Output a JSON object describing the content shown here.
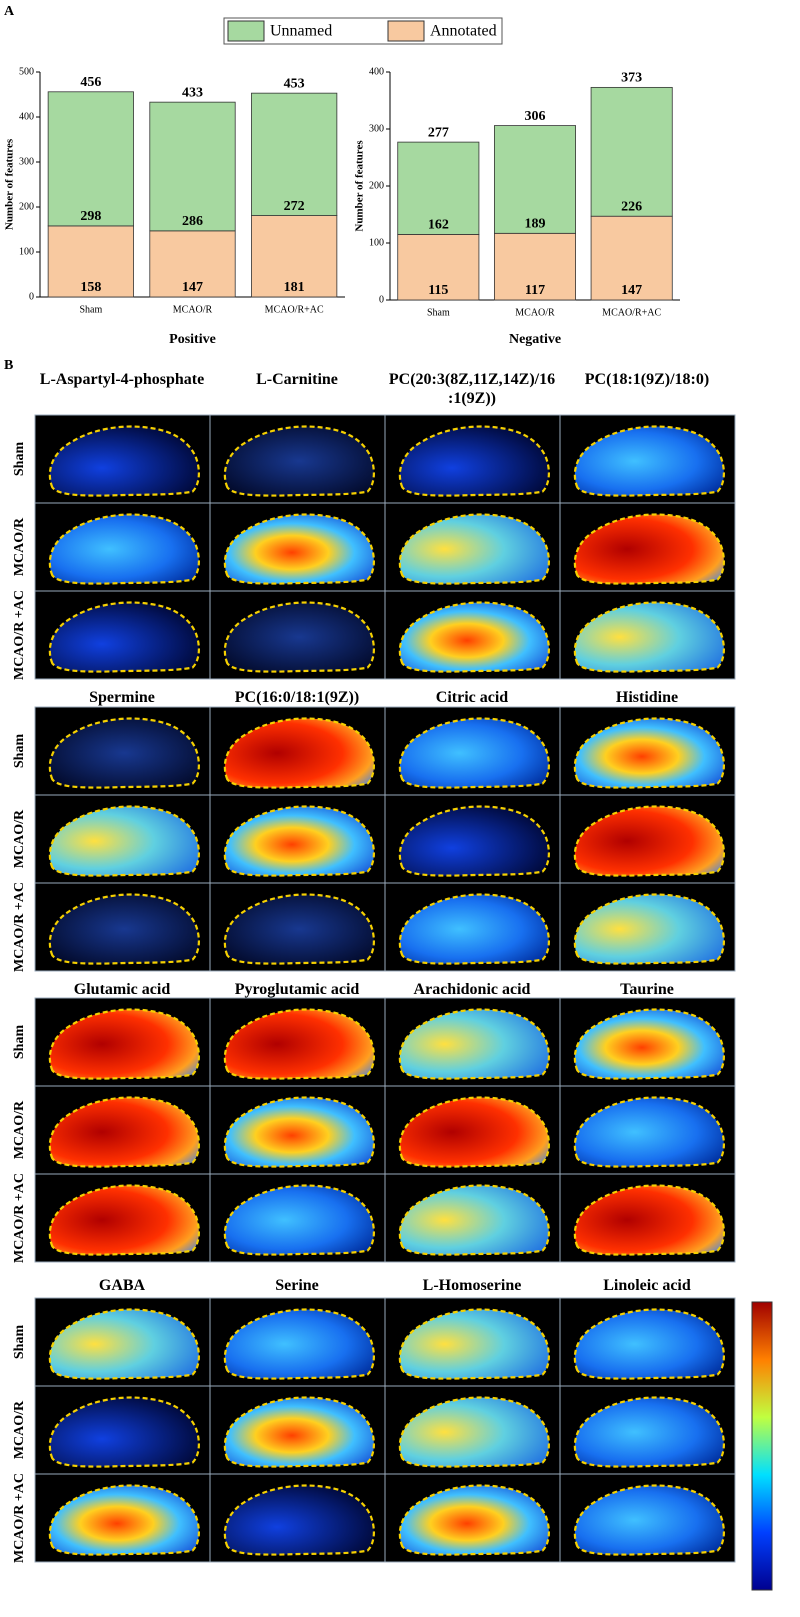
{
  "panel_labels": [
    "A",
    "B"
  ],
  "chart_data": [
    {
      "type": "bar",
      "stacked": true,
      "x_label": "Positive",
      "y_label": "Number of features",
      "categories": [
        "Sham",
        "MCAO/R",
        "MCAO/R+AC"
      ],
      "series": [
        {
          "name": "Unnamed",
          "color": "#a6d9a0",
          "values": [
            298,
            286,
            272
          ]
        },
        {
          "name": "Annotated",
          "color": "#f8c9a0",
          "values": [
            158,
            147,
            181
          ]
        }
      ],
      "totals": [
        456,
        433,
        453
      ],
      "ylim": [
        0,
        500
      ],
      "yticks": [
        0,
        100,
        200,
        300,
        400,
        500
      ]
    },
    {
      "type": "bar",
      "stacked": true,
      "x_label": "Negative",
      "y_label": "Number of features",
      "categories": [
        "Sham",
        "MCAO/R",
        "MCAO/R+AC"
      ],
      "series": [
        {
          "name": "Unnamed",
          "color": "#a6d9a0",
          "values": [
            162,
            189,
            226
          ]
        },
        {
          "name": "Annotated",
          "color": "#f8c9a0",
          "values": [
            115,
            117,
            147
          ]
        }
      ],
      "totals": [
        277,
        306,
        373
      ],
      "ylim": [
        0,
        400
      ],
      "yticks": [
        0,
        100,
        200,
        300,
        400
      ]
    }
  ],
  "panel_b": {
    "row_labels": [
      "Sham",
      "MCAO/R",
      "MCAO/R +AC"
    ],
    "blocks": [
      {
        "titles": [
          "L-Aspartyl-4-phosphate",
          "L-Carnitine",
          "PC(20:3(8Z,11Z,14Z)/16:1(9Z))",
          "PC(18:1(9Z)/18:0)"
        ]
      },
      {
        "titles": [
          "Spermine",
          "PC(16:0/18:1(9Z))",
          "Citric acid",
          "Histidine"
        ]
      },
      {
        "titles": [
          "Glutamic acid",
          "Pyroglutamic acid",
          "Arachidonic acid",
          "Taurine"
        ]
      },
      {
        "titles": [
          "GABA",
          "Serine",
          "L-Homoserine",
          "Linoleic acid"
        ]
      }
    ]
  }
}
